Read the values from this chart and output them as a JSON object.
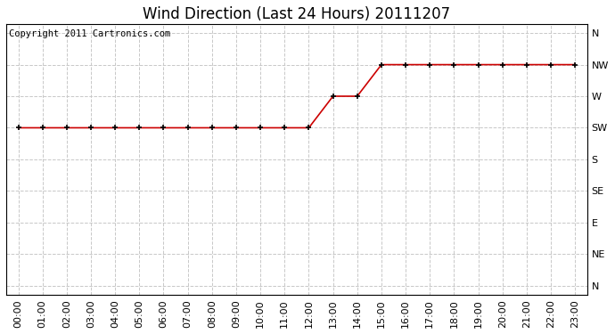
{
  "title": "Wind Direction (Last 24 Hours) 20111207",
  "copyright_text": "Copyright 2011 Cartronics.com",
  "background_color": "#ffffff",
  "plot_background_color": "#ffffff",
  "grid_color": "#c8c8c8",
  "line_color": "#cc0000",
  "marker_color": "#000000",
  "x_labels": [
    "00:00",
    "01:00",
    "02:00",
    "03:00",
    "04:00",
    "05:00",
    "06:00",
    "07:00",
    "08:00",
    "09:00",
    "10:00",
    "11:00",
    "12:00",
    "13:00",
    "14:00",
    "15:00",
    "16:00",
    "17:00",
    "18:00",
    "19:00",
    "20:00",
    "21:00",
    "22:00",
    "23:00"
  ],
  "y_labels_top_to_bottom": [
    "N",
    "NW",
    "W",
    "SW",
    "S",
    "SE",
    "E",
    "NE",
    "N"
  ],
  "data_points": [
    5,
    5,
    5,
    5,
    5,
    5,
    5,
    5,
    5,
    5,
    5,
    5,
    5,
    6,
    6,
    7,
    7,
    7,
    7,
    7,
    7,
    7,
    7,
    7
  ],
  "title_fontsize": 12,
  "axis_fontsize": 8,
  "copyright_fontsize": 7.5
}
